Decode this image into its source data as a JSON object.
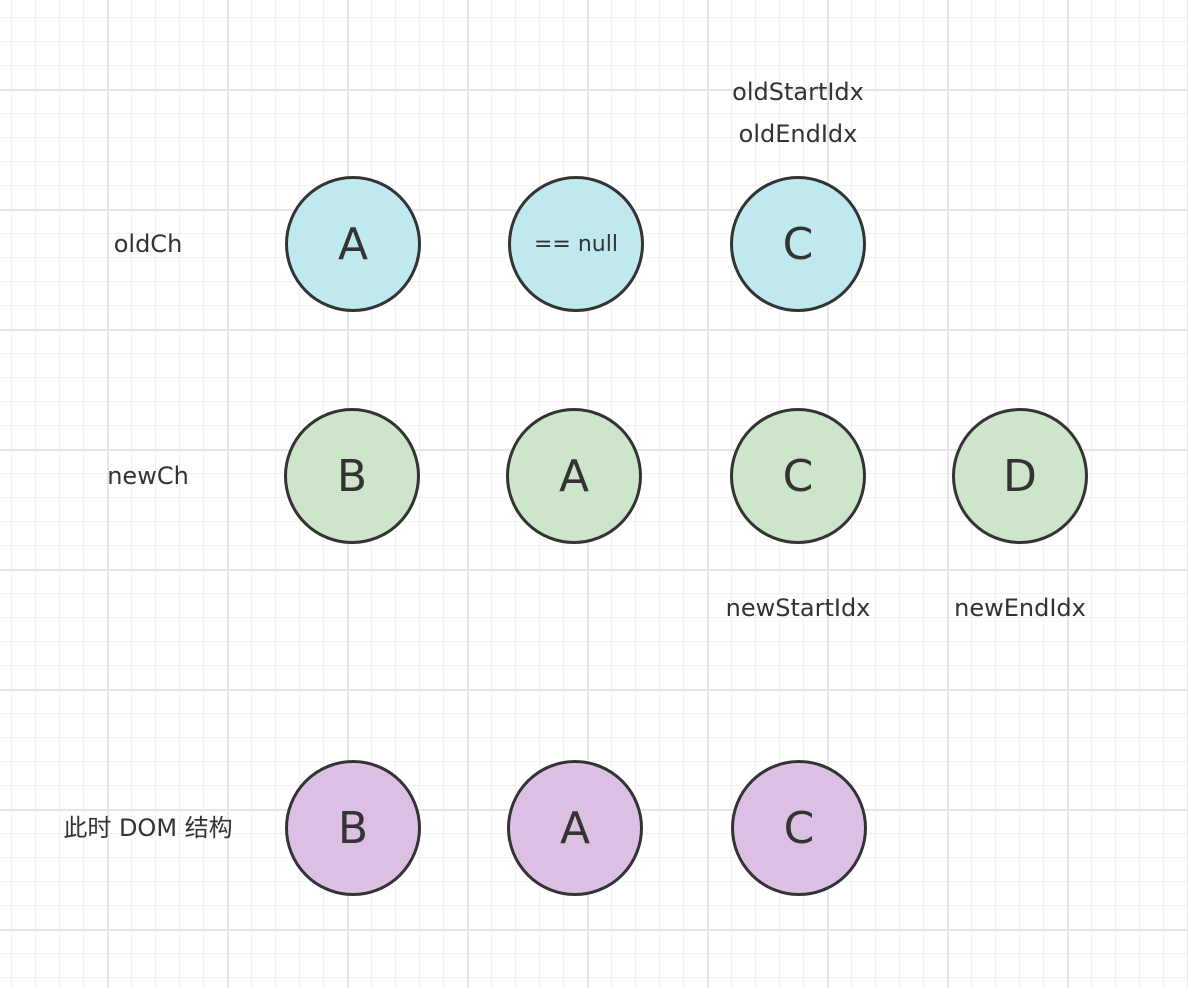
{
  "rows": {
    "old_label": "oldCh",
    "new_label": "newCh",
    "dom_label": "此时 DOM 结构"
  },
  "old_nodes": [
    "A",
    "== null",
    "C"
  ],
  "new_nodes": [
    "B",
    "A",
    "C",
    "D"
  ],
  "dom_nodes": [
    "B",
    "A",
    "C"
  ],
  "pointers": {
    "old_start": "oldStartIdx",
    "old_end": "oldEndIdx",
    "new_start": "newStartIdx",
    "new_end": "newEndIdx"
  },
  "colors": {
    "old_fill": "#bfe9ef",
    "new_fill": "#cde5cb",
    "dom_fill": "#dcc0e4",
    "stroke": "#333333"
  }
}
